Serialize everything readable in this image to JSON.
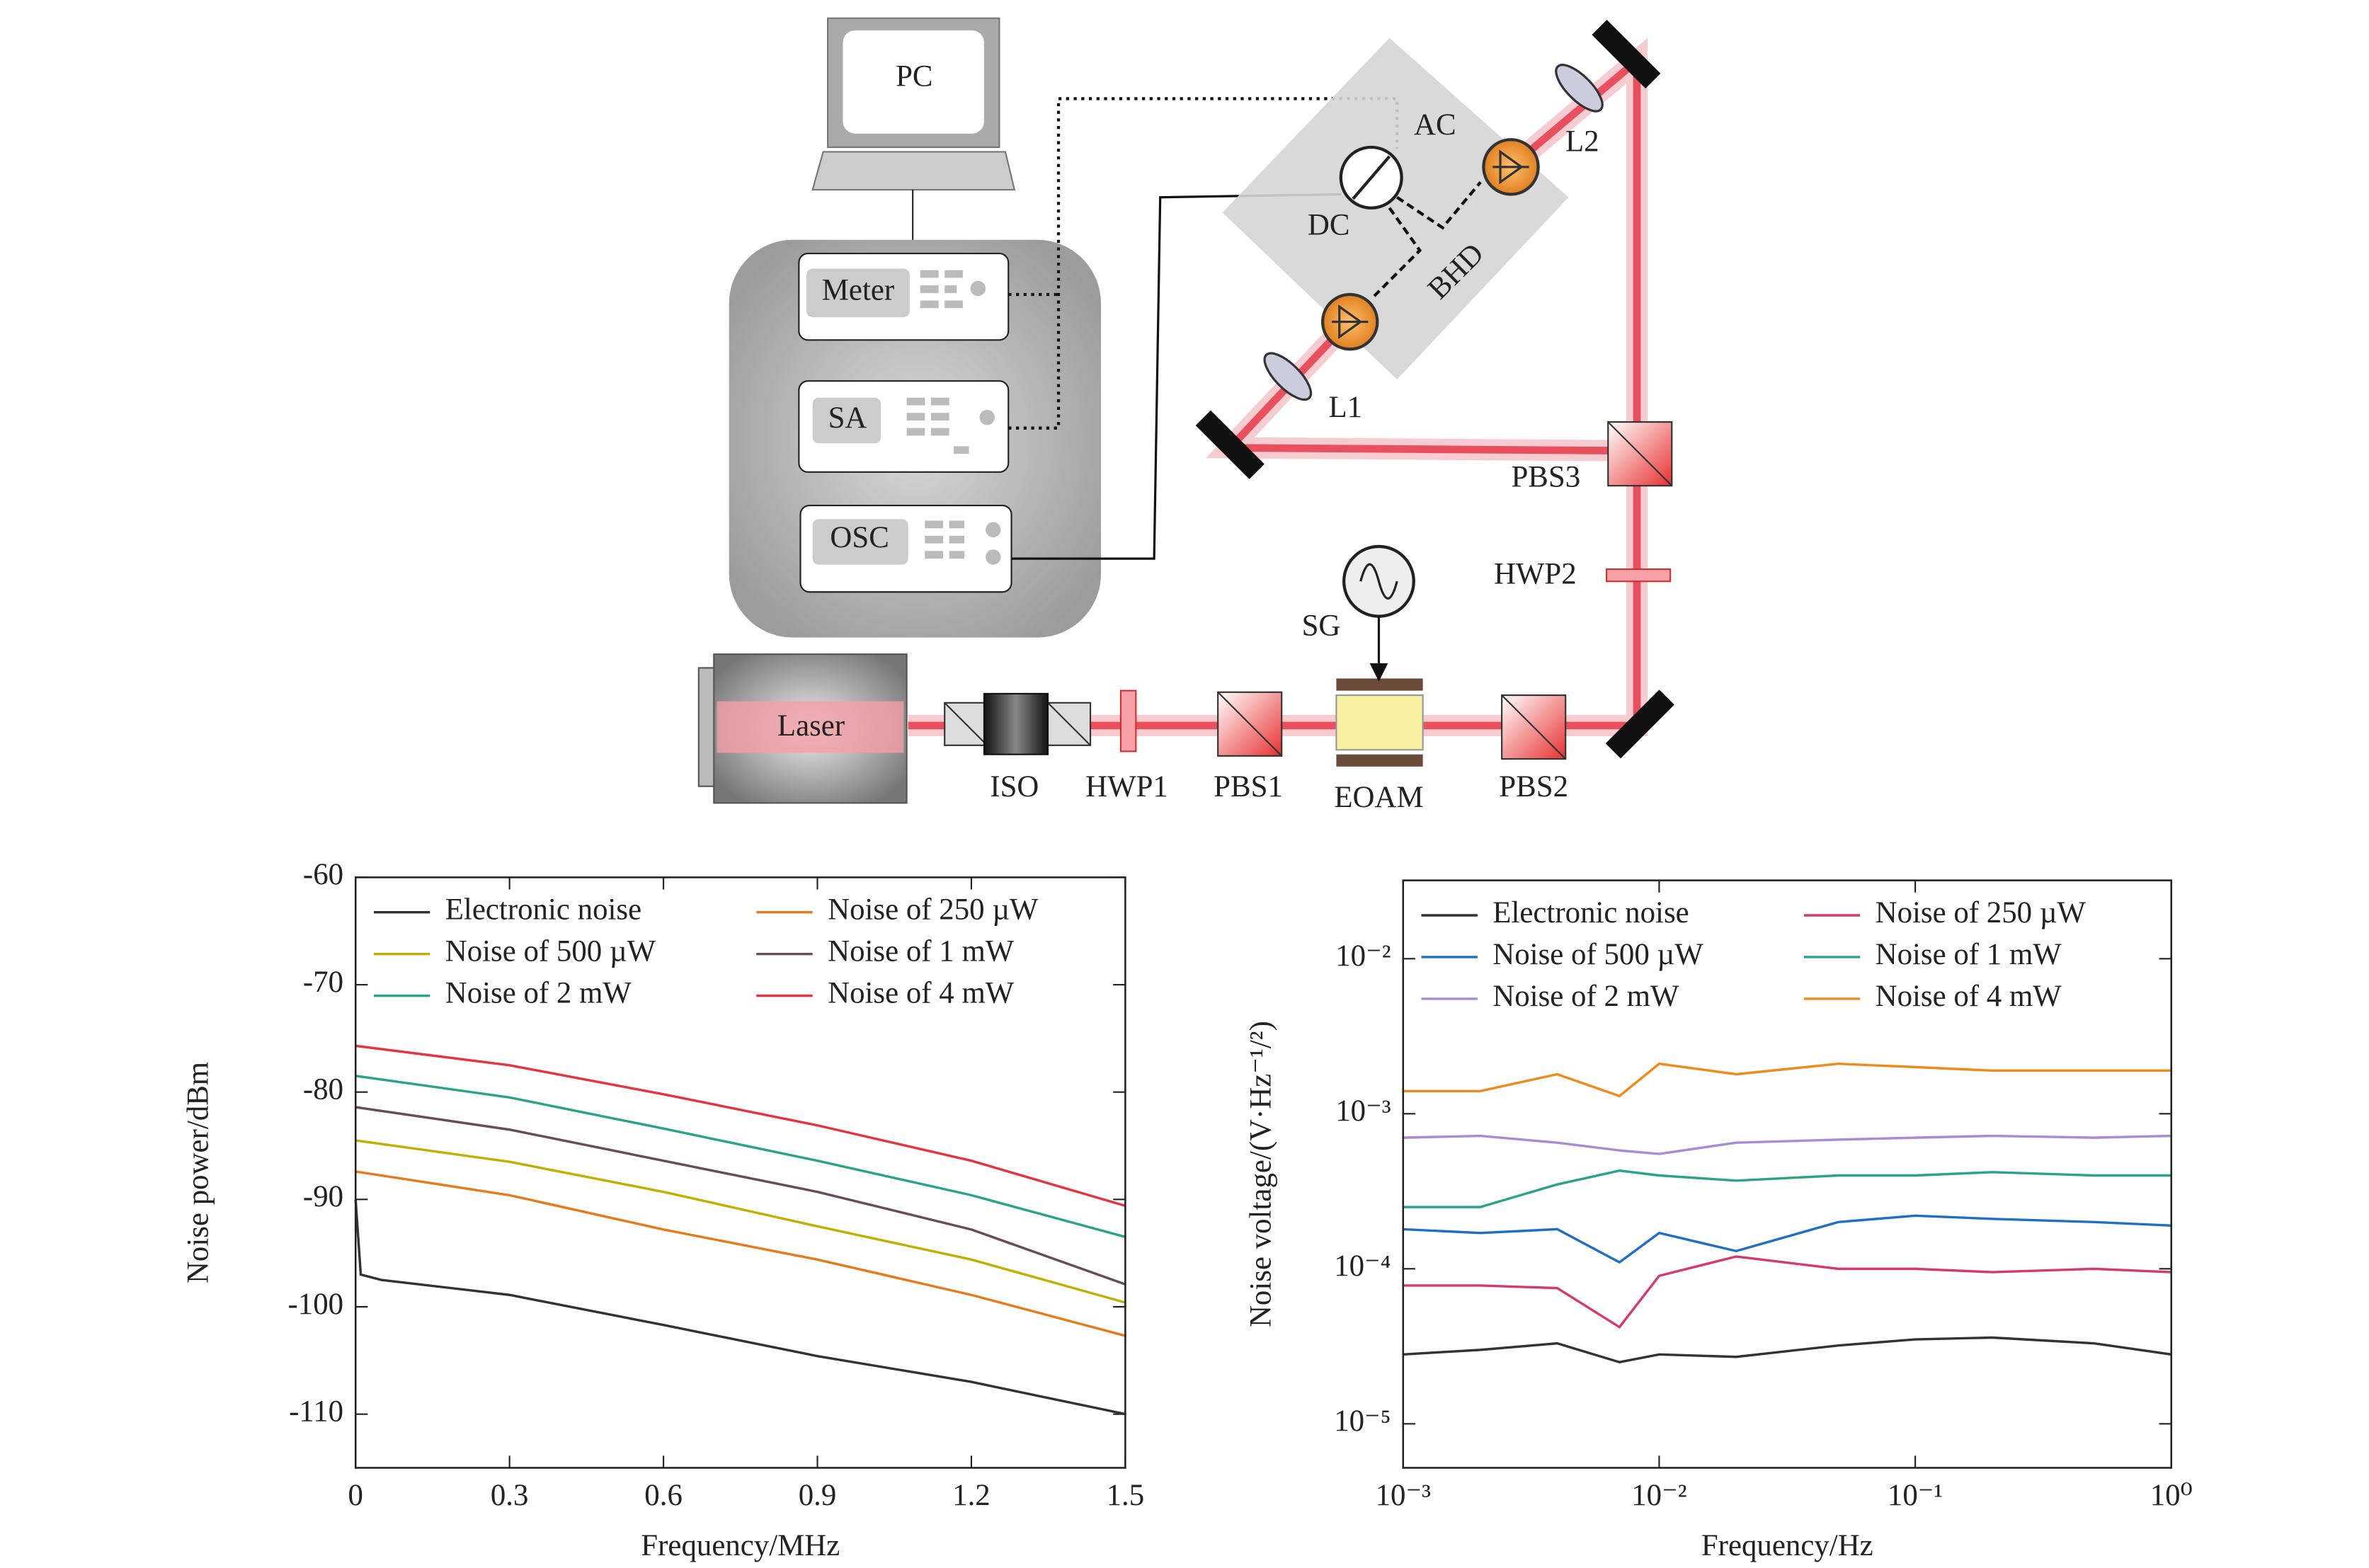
{
  "diagram": {
    "pc": "PC",
    "meter": "Meter",
    "sa": "SA",
    "osc": "OSC",
    "ac": "AC",
    "dc": "DC",
    "bhd": "BHD",
    "l1": "L1",
    "l2": "L2",
    "pbs1": "PBS1",
    "pbs2": "PBS2",
    "pbs3": "PBS3",
    "hwp1": "HWP1",
    "hwp2": "HWP2",
    "sg": "SG",
    "eoam": "EOAM",
    "iso": "ISO",
    "laser": "Laser"
  },
  "chart_data": [
    {
      "type": "line",
      "xlabel": "Frequency/MHz",
      "ylabel": "Noise power/dBm",
      "xlim": [
        0,
        1.5
      ],
      "ylim": [
        -115,
        -60
      ],
      "xticks": [
        0,
        0.3,
        0.6,
        0.9,
        1.2,
        1.5
      ],
      "yticks": [
        -60,
        -70,
        -80,
        -90,
        -100,
        -110
      ],
      "legend": "upper left",
      "series": [
        {
          "name": "Electronic noise",
          "color": "#333333",
          "x": [
            0,
            0.01,
            0.05,
            0.3,
            0.6,
            0.9,
            1.2,
            1.5
          ],
          "values": [
            -90,
            -97,
            -97.5,
            -98.9,
            -101.7,
            -104.6,
            -107,
            -110
          ]
        },
        {
          "name": "Noise of 250 µW",
          "color": "#e87a1a",
          "x": [
            0,
            0.3,
            0.6,
            0.9,
            1.2,
            1.5
          ],
          "values": [
            -87.4,
            -89.6,
            -92.8,
            -95.6,
            -98.9,
            -102.7
          ]
        },
        {
          "name": "Noise of 500 µW",
          "color": "#c2b000",
          "x": [
            0,
            0.3,
            0.6,
            0.9,
            1.2,
            1.5
          ],
          "values": [
            -84.5,
            -86.5,
            -89.3,
            -92.5,
            -95.6,
            -99.6
          ]
        },
        {
          "name": "Noise of 1 mW",
          "color": "#6b4a5a",
          "x": [
            0,
            0.3,
            0.6,
            0.9,
            1.2,
            1.5
          ],
          "values": [
            -81.4,
            -83.5,
            -86.4,
            -89.3,
            -92.8,
            -97.9
          ]
        },
        {
          "name": "Noise of 2 mW",
          "color": "#2aa488",
          "x": [
            0,
            0.3,
            0.6,
            0.9,
            1.2,
            1.5
          ],
          "values": [
            -78.5,
            -80.5,
            -83.4,
            -86.4,
            -89.6,
            -93.5
          ]
        },
        {
          "name": "Noise of 4 mW",
          "color": "#e8333f",
          "x": [
            0,
            0.3,
            0.6,
            0.9,
            1.2,
            1.5
          ],
          "values": [
            -75.7,
            -77.5,
            -80.2,
            -83.1,
            -86.4,
            -90.6
          ]
        }
      ]
    },
    {
      "type": "line",
      "xlabel": "Frequency/Hz",
      "ylabel": "Noise voltage/(V·Hz⁻¹/²)",
      "xscale": "log",
      "yscale": "log",
      "xlim": [
        0.001,
        1
      ],
      "ylim": [
        5.2e-06,
        0.032
      ],
      "xticks": [
        {
          "value": 0.001,
          "label": "10⁻³"
        },
        {
          "value": 0.01,
          "label": "10⁻²"
        },
        {
          "value": 0.1,
          "label": "10⁻¹"
        },
        {
          "value": 1,
          "label": "10⁰"
        }
      ],
      "yticks": [
        {
          "value": 0.01,
          "label": "10⁻²"
        },
        {
          "value": 0.001,
          "label": "10⁻³"
        },
        {
          "value": 0.0001,
          "label": "10⁻⁴"
        },
        {
          "value": 1e-05,
          "label": "10⁻⁵"
        }
      ],
      "legend": "upper left",
      "series": [
        {
          "name": "Electronic noise",
          "color": "#333333",
          "x": [
            0.001,
            0.002,
            0.004,
            0.007,
            0.01,
            0.02,
            0.05,
            0.1,
            0.2,
            0.5,
            1
          ],
          "values": [
            2.8e-05,
            3e-05,
            3.3e-05,
            2.5e-05,
            2.8e-05,
            2.7e-05,
            3.2e-05,
            3.5e-05,
            3.6e-05,
            3.3e-05,
            2.8e-05
          ]
        },
        {
          "name": "Noise of 250 µW",
          "color": "#d63a6a",
          "x": [
            0.001,
            0.002,
            0.004,
            0.007,
            0.01,
            0.02,
            0.05,
            0.1,
            0.2,
            0.5,
            1
          ],
          "values": [
            7.8e-05,
            7.8e-05,
            7.5e-05,
            4.2e-05,
            9e-05,
            0.00012,
            0.0001,
            0.0001,
            9.5e-05,
            0.0001,
            9.5e-05
          ]
        },
        {
          "name": "Noise of 500 µW",
          "color": "#1f6fc8",
          "x": [
            0.001,
            0.002,
            0.004,
            0.007,
            0.01,
            0.02,
            0.05,
            0.1,
            0.2,
            0.5,
            1
          ],
          "values": [
            0.00018,
            0.00017,
            0.00018,
            0.00011,
            0.00017,
            0.00013,
            0.0002,
            0.00022,
            0.00021,
            0.0002,
            0.00019
          ]
        },
        {
          "name": "Noise of 1 mW",
          "color": "#2aa488",
          "x": [
            0.001,
            0.002,
            0.004,
            0.007,
            0.01,
            0.02,
            0.05,
            0.1,
            0.2,
            0.5,
            1
          ],
          "values": [
            0.00025,
            0.00025,
            0.00035,
            0.00043,
            0.0004,
            0.00037,
            0.0004,
            0.0004,
            0.00042,
            0.0004,
            0.0004
          ]
        },
        {
          "name": "Noise of 2 mW",
          "color": "#a98ad6",
          "x": [
            0.001,
            0.002,
            0.004,
            0.007,
            0.01,
            0.02,
            0.05,
            0.1,
            0.2,
            0.5,
            1
          ],
          "values": [
            0.0007,
            0.00072,
            0.00065,
            0.00058,
            0.00055,
            0.00065,
            0.00068,
            0.0007,
            0.00072,
            0.0007,
            0.00072
          ]
        },
        {
          "name": "Noise of 4 mW",
          "color": "#f08a1a",
          "x": [
            0.001,
            0.002,
            0.004,
            0.007,
            0.01,
            0.02,
            0.05,
            0.1,
            0.2,
            0.5,
            1
          ],
          "values": [
            0.0014,
            0.0014,
            0.0018,
            0.0013,
            0.0021,
            0.0018,
            0.0021,
            0.002,
            0.0019,
            0.0019,
            0.0019
          ]
        }
      ]
    }
  ]
}
